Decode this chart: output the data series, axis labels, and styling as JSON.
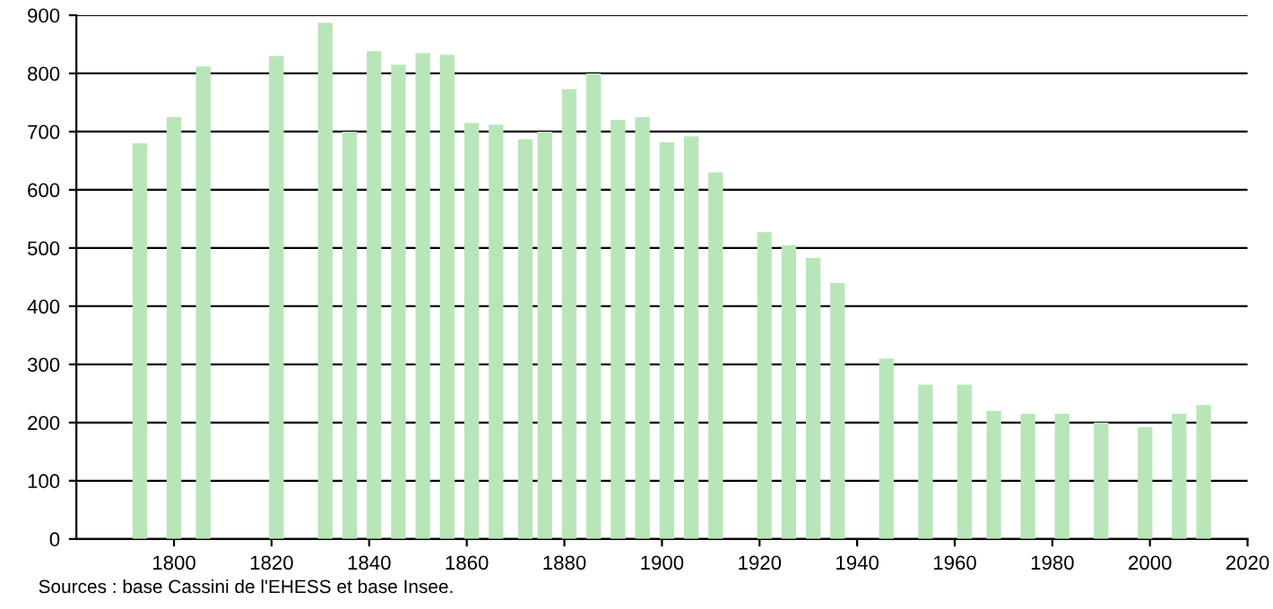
{
  "chart_data": {
    "type": "bar",
    "x": [
      1793,
      1800,
      1806,
      1821,
      1831,
      1836,
      1841,
      1846,
      1851,
      1856,
      1861,
      1866,
      1872,
      1876,
      1881,
      1886,
      1891,
      1896,
      1901,
      1906,
      1911,
      1921,
      1926,
      1931,
      1936,
      1946,
      1954,
      1962,
      1968,
      1975,
      1982,
      1990,
      1999,
      2006,
      2011
    ],
    "values": [
      680,
      725,
      812,
      830,
      887,
      700,
      838,
      815,
      835,
      832,
      715,
      712,
      687,
      700,
      773,
      800,
      720,
      725,
      682,
      692,
      630,
      527,
      505,
      483,
      440,
      310,
      265,
      265,
      220,
      215,
      215,
      200,
      192,
      215,
      230
    ],
    "color": "#b8e6b8",
    "xlim": [
      1780,
      2020
    ],
    "xticks": [
      1800,
      1820,
      1840,
      1860,
      1880,
      1900,
      1920,
      1940,
      1960,
      1980,
      2000,
      2020
    ],
    "ylim": [
      0,
      900
    ],
    "yticks": [
      0,
      100,
      200,
      300,
      400,
      500,
      600,
      700,
      800,
      900
    ],
    "grid": "y",
    "annotations": [
      "Sources : base Cassini de l'EHESS et base Insee."
    ]
  }
}
